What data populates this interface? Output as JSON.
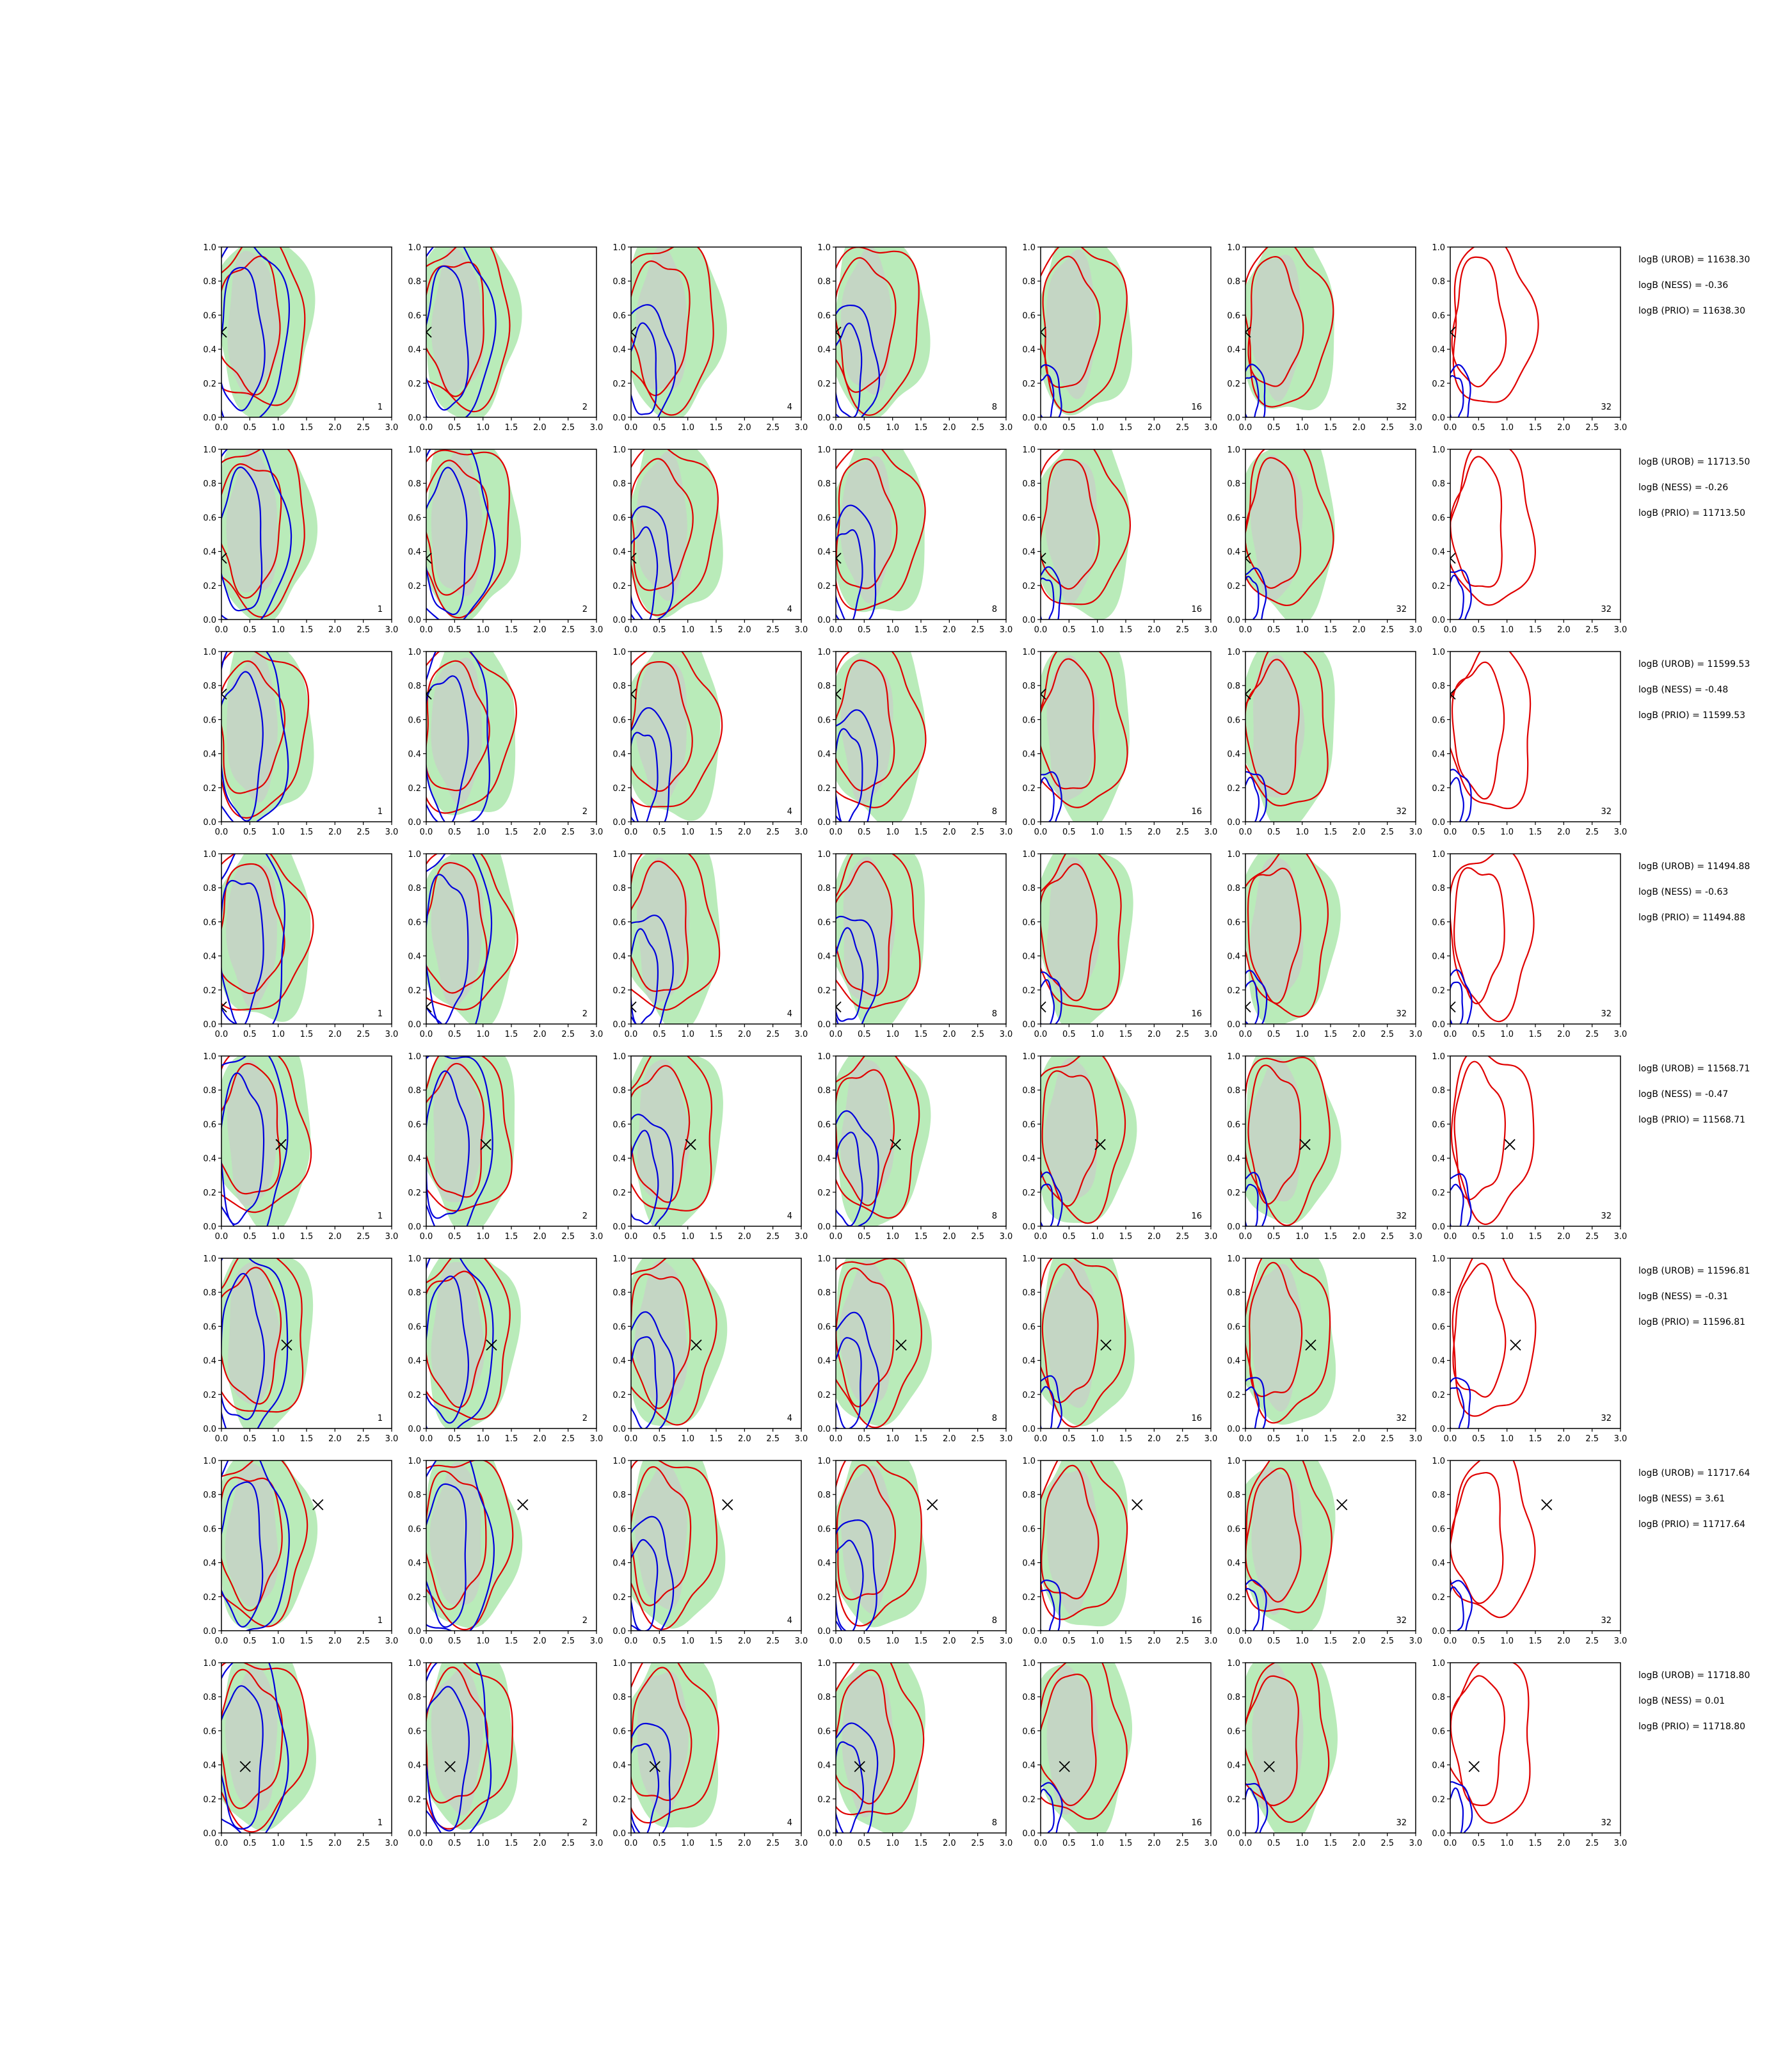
{
  "chart_data": {
    "type": "contour-grid",
    "rows": 8,
    "cols": 7,
    "xlim": [
      0.0,
      3.0
    ],
    "ylim": [
      0.0,
      1.0
    ],
    "xticks": [
      "0.0",
      "0.5",
      "1.0",
      "1.5",
      "2.0",
      "2.5",
      "3.0"
    ],
    "yticks": [
      "0.0",
      "0.2",
      "0.4",
      "0.6",
      "0.8",
      "1.0"
    ],
    "column_labels": [
      "1",
      "2",
      "4",
      "8",
      "16",
      "32",
      "32"
    ],
    "truth": [
      {
        "x": 0.0,
        "y": 0.5
      },
      {
        "x": 0.0,
        "y": 0.36
      },
      {
        "x": 0.0,
        "y": 0.75
      },
      {
        "x": 0.0,
        "y": 0.1
      },
      {
        "x": 1.05,
        "y": 0.48
      },
      {
        "x": 1.15,
        "y": 0.49
      },
      {
        "x": 1.7,
        "y": 0.74
      },
      {
        "x": 0.42,
        "y": 0.39
      }
    ],
    "annotations": [
      [
        "logB (UROB) = 11638.30",
        "logB (NESS) = -0.36",
        "logB (PRIO) = 11638.30"
      ],
      [
        "logB (UROB) = 11713.50",
        "logB (NESS) = -0.26",
        "logB (PRIO) = 11713.50"
      ],
      [
        "logB (UROB) = 11599.53",
        "logB (NESS) = -0.48",
        "logB (PRIO) = 11599.53"
      ],
      [
        "logB (UROB) = 11494.88",
        "logB (NESS) = -0.63",
        "logB (PRIO) = 11494.88"
      ],
      [
        "logB (UROB) = 11568.71",
        "logB (NESS) = -0.47",
        "logB (PRIO) = 11568.71"
      ],
      [
        "logB (UROB) = 11596.81",
        "logB (NESS) = -0.31",
        "logB (PRIO) = 11596.81"
      ],
      [
        "logB (UROB) = 11717.64",
        "logB (NESS) = 3.61",
        "logB (PRIO) = 11717.64"
      ],
      [
        "logB (UROB) = 11718.80",
        "logB (NESS) = 0.01",
        "logB (PRIO) = 11718.80"
      ]
    ],
    "colors": {
      "outer_fill": "#b9ebb9",
      "inner_fill": "#c8cfc8",
      "red": "#e00000",
      "blue": "#0000dd",
      "axis": "#000000"
    }
  }
}
